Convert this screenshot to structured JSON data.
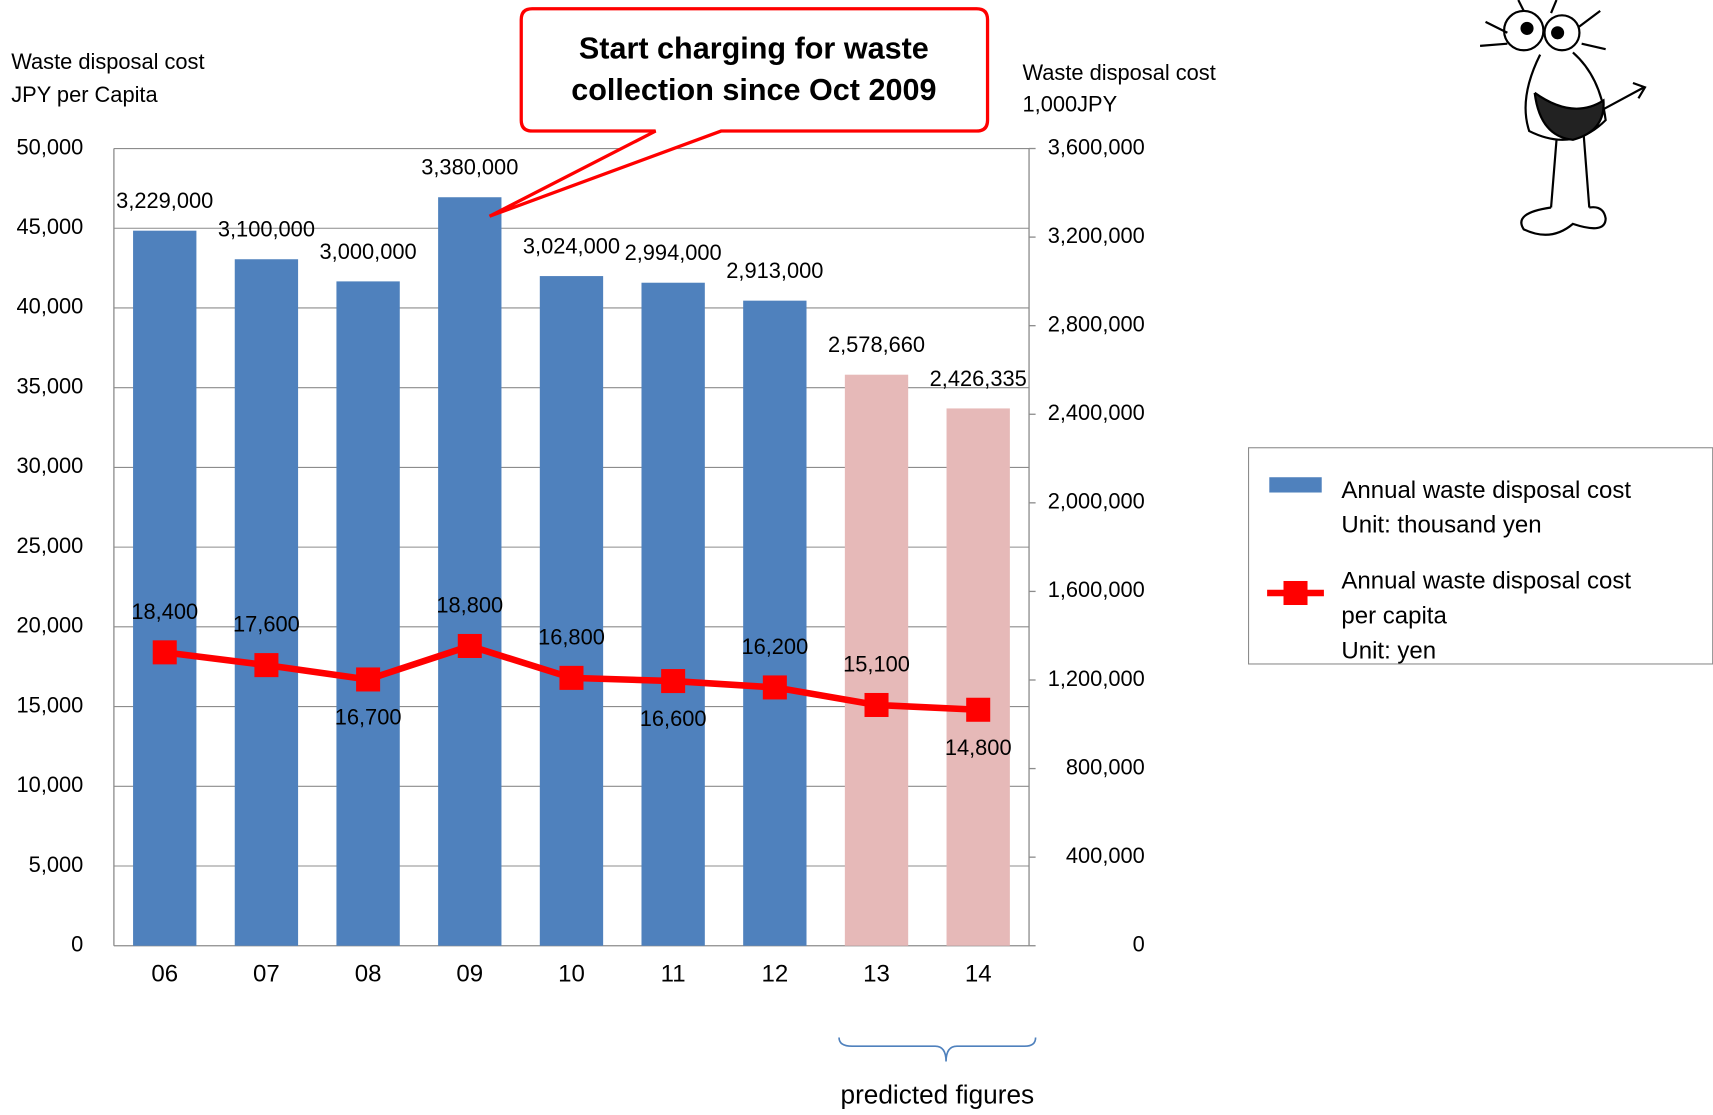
{
  "chart_data": {
    "type": "bar-line",
    "annotation": [
      "Start charging for waste",
      "collection since Oct 2009"
    ],
    "note": "predicted figures",
    "y_label": [
      "Waste disposal  cost",
      "JPY per Capita"
    ],
    "y2_label": [
      "Waste disposal  cost",
      "1,000JPY"
    ],
    "categories": [
      "06",
      "07",
      "08",
      "09",
      "10",
      "11",
      "12",
      "13",
      "14"
    ],
    "ylim": [
      0,
      50000
    ],
    "yticks": [
      0,
      {
        "value": 5000,
        "label": "5,000"
      },
      {
        "value": 10000,
        "label": "10,000"
      },
      {
        "value": 15000,
        "label": "15,000"
      },
      {
        "value": 20000,
        "label": "20,000"
      },
      {
        "value": 25000,
        "label": "25,000"
      },
      {
        "value": 30000,
        "label": "30,000"
      },
      {
        "value": 35000,
        "label": "35,000"
      },
      {
        "value": 40000,
        "label": "40,000"
      },
      {
        "value": 45000,
        "label": "45,000"
      },
      {
        "value": 50000,
        "label": "50,000"
      }
    ],
    "y2lim": [
      0,
      3600000
    ],
    "y2ticks": [
      0,
      {
        "value": 400000,
        "label": "400,000"
      },
      {
        "value": 800000,
        "label": "800,000"
      },
      {
        "value": 1200000,
        "label": "1,200,000"
      },
      {
        "value": 1600000,
        "label": "1,600,000"
      },
      {
        "value": 2000000,
        "label": "2,000,000"
      },
      {
        "value": 2400000,
        "label": "2,400,000"
      },
      {
        "value": 2800000,
        "label": "2,800,000"
      },
      {
        "value": 3200000,
        "label": "3,200,000"
      },
      {
        "value": 3600000,
        "label": "3,600,000"
      }
    ],
    "grid": true,
    "series": [
      {
        "name": [
          "Annual  waste disposal cost",
          "Unit: thousand yen"
        ],
        "type": "bar",
        "axis": "y2",
        "color": "#4f81bd",
        "colors": [
          "#4f81bd",
          "#4f81bd",
          "#4f81bd",
          "#4f81bd",
          "#4f81bd",
          "#4f81bd",
          "#4f81bd",
          "#e6b9b8",
          "#e6b9b8"
        ],
        "values": [
          3229000,
          3100000,
          3000000,
          3380000,
          3024000,
          2994000,
          2913000,
          2578660,
          2426335
        ],
        "value_labels": [
          "3,229,000",
          "3,100,000",
          "3,000,000",
          "3,380,000",
          "3,024,000",
          "2,994,000",
          "2,913,000",
          "2,578,660",
          "2,426,335"
        ]
      },
      {
        "name": [
          "Annual  waste disposal cost",
          "per capita",
          "Unit: yen"
        ],
        "type": "line",
        "axis": "y",
        "color": "#ff0000",
        "values": [
          18400,
          17600,
          16700,
          18800,
          16800,
          16600,
          16200,
          15100,
          14800
        ],
        "value_labels": [
          "18,400",
          "17,600",
          "16,700",
          "18,800",
          "16,800",
          "16,600",
          "16,200",
          "15,100",
          "14,800"
        ]
      }
    ]
  }
}
